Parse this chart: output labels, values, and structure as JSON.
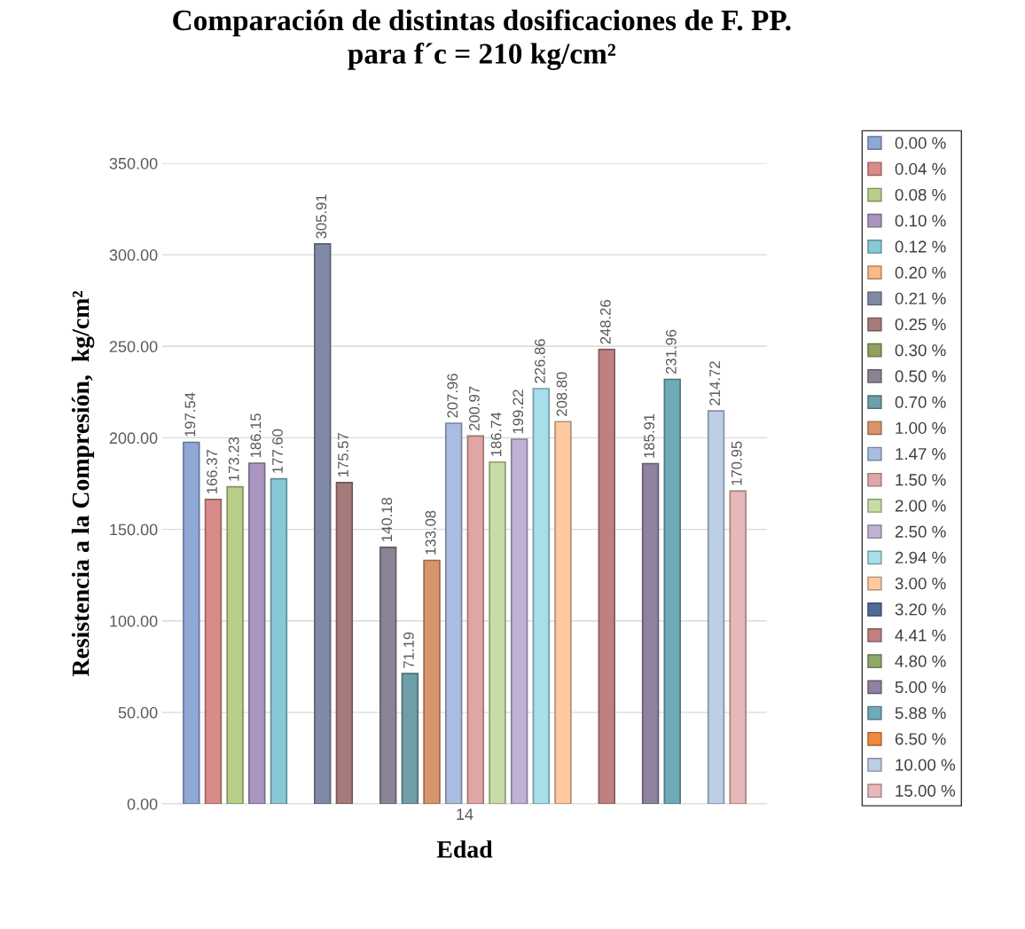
{
  "chart_data": {
    "type": "bar",
    "title": "Comparación de distintas dosificaciones de F. PP.\npara f´c = 210 kg/cm²",
    "xlabel": "Edad",
    "ylabel": "Resistencia a la Compresión,  kg/cm²",
    "categories": [
      "14"
    ],
    "ylim": [
      0,
      350
    ],
    "yticks": [
      {
        "value": 0,
        "label": "0.00"
      },
      {
        "value": 50,
        "label": "50.00"
      },
      {
        "value": 100,
        "label": "100.00"
      },
      {
        "value": 150,
        "label": "150.00"
      },
      {
        "value": 200,
        "label": "200.00"
      },
      {
        "value": 250,
        "label": "250.00"
      },
      {
        "value": 300,
        "label": "300.00"
      },
      {
        "value": 350,
        "label": "350.00"
      }
    ],
    "grid": "y",
    "legend": "right",
    "series": [
      {
        "name": "0.00 %",
        "color": "#8fa9d6",
        "values": [
          197.54
        ],
        "value_labels": [
          "197.54"
        ]
      },
      {
        "name": "0.04 %",
        "color": "#d98b89",
        "values": [
          166.37
        ],
        "value_labels": [
          "166.37"
        ]
      },
      {
        "name": "0.08 %",
        "color": "#b8cf8a",
        "values": [
          173.23
        ],
        "value_labels": [
          "173.23"
        ]
      },
      {
        "name": "0.10 %",
        "color": "#a995c0",
        "values": [
          186.15
        ],
        "value_labels": [
          "186.15"
        ]
      },
      {
        "name": "0.12 %",
        "color": "#88c9d8",
        "values": [
          177.6
        ],
        "value_labels": [
          "177.60"
        ]
      },
      {
        "name": "0.20 %",
        "color": "#f9b98a",
        "values": [
          null
        ]
      },
      {
        "name": "0.21 %",
        "color": "#7f8aa5",
        "values": [
          305.91
        ],
        "value_labels": [
          "305.91"
        ]
      },
      {
        "name": "0.25 %",
        "color": "#a57a7a",
        "values": [
          175.57
        ],
        "value_labels": [
          "175.57"
        ]
      },
      {
        "name": "0.30 %",
        "color": "#8fa060",
        "values": [
          null
        ]
      },
      {
        "name": "0.50 %",
        "color": "#8a8396",
        "values": [
          140.18
        ],
        "value_labels": [
          "140.18"
        ]
      },
      {
        "name": "0.70 %",
        "color": "#6e9ea8",
        "values": [
          71.19
        ],
        "value_labels": [
          "71.19"
        ]
      },
      {
        "name": "1.00 %",
        "color": "#d8946a",
        "values": [
          133.08
        ],
        "value_labels": [
          "133.08"
        ]
      },
      {
        "name": "1.47 %",
        "color": "#a8bde0",
        "values": [
          207.96
        ],
        "value_labels": [
          "207.96"
        ]
      },
      {
        "name": "1.50 %",
        "color": "#e0a6a5",
        "values": [
          200.97
        ],
        "value_labels": [
          "200.97"
        ]
      },
      {
        "name": "2.00 %",
        "color": "#c8dca6",
        "values": [
          186.74
        ],
        "value_labels": [
          "186.74"
        ]
      },
      {
        "name": "2.50 %",
        "color": "#c0b2d4",
        "values": [
          199.22
        ],
        "value_labels": [
          "199.22"
        ]
      },
      {
        "name": "2.94 %",
        "color": "#a6dfea",
        "values": [
          226.86
        ],
        "value_labels": [
          "226.86"
        ]
      },
      {
        "name": "3.00 %",
        "color": "#fcc9a0",
        "values": [
          208.8
        ],
        "value_labels": [
          "208.80"
        ]
      },
      {
        "name": "3.20 %",
        "color": "#4f6a96",
        "values": [
          null
        ]
      },
      {
        "name": "4.41 %",
        "color": "#c08080",
        "values": [
          248.26
        ],
        "value_labels": [
          "248.26"
        ]
      },
      {
        "name": "4.80 %",
        "color": "#8ea868",
        "values": [
          null
        ]
      },
      {
        "name": "5.00 %",
        "color": "#8e82a0",
        "values": [
          185.91
        ],
        "value_labels": [
          "185.91"
        ]
      },
      {
        "name": "5.88 %",
        "color": "#6eaab8",
        "values": [
          231.96
        ],
        "value_labels": [
          "231.96"
        ]
      },
      {
        "name": "6.50 %",
        "color": "#f08a40",
        "values": [
          null
        ]
      },
      {
        "name": "10.00 %",
        "color": "#bccde6",
        "values": [
          214.72
        ],
        "value_labels": [
          "214.72"
        ]
      },
      {
        "name": "15.00 %",
        "color": "#e8b8b8",
        "values": [
          170.95
        ],
        "value_labels": [
          "170.95"
        ]
      }
    ]
  }
}
